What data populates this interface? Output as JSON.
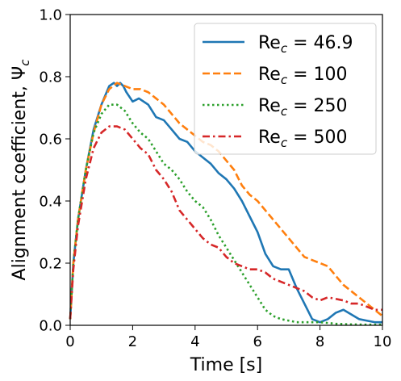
{
  "chart_data": {
    "type": "line",
    "title": "",
    "xlabel": "Time [s]",
    "ylabel": "Alignment coefficient, Ψ",
    "ylabel_subscript": "c",
    "xlim": [
      0,
      10
    ],
    "ylim": [
      0,
      1.0
    ],
    "xticks": [
      "0",
      "2",
      "4",
      "6",
      "8",
      "10"
    ],
    "yticks": [
      "0.0",
      "0.2",
      "0.4",
      "0.6",
      "0.8",
      "1.0"
    ],
    "grid": false,
    "legend_position": "top-right",
    "series": [
      {
        "name_prefix": "Re",
        "name_subscript": "c",
        "name_suffix": " = 46.9",
        "color": "#1f77b4",
        "dash": "solid",
        "x": [
          0,
          0.1,
          0.25,
          0.5,
          0.75,
          1.0,
          1.25,
          1.4,
          1.5,
          1.6,
          1.7,
          1.8,
          2.0,
          2.2,
          2.5,
          2.75,
          3.0,
          3.25,
          3.5,
          3.75,
          4.0,
          4.25,
          4.5,
          4.75,
          5.0,
          5.25,
          5.5,
          5.75,
          6.0,
          6.25,
          6.5,
          6.75,
          7.0,
          7.25,
          7.5,
          7.75,
          8.0,
          8.25,
          8.5,
          8.75,
          9.0,
          9.25,
          9.5,
          9.75,
          10.0
        ],
        "y": [
          0.02,
          0.2,
          0.34,
          0.5,
          0.63,
          0.71,
          0.77,
          0.78,
          0.77,
          0.78,
          0.77,
          0.75,
          0.72,
          0.73,
          0.71,
          0.67,
          0.66,
          0.63,
          0.6,
          0.59,
          0.56,
          0.54,
          0.52,
          0.49,
          0.47,
          0.44,
          0.4,
          0.35,
          0.3,
          0.23,
          0.19,
          0.18,
          0.18,
          0.12,
          0.07,
          0.02,
          0.01,
          0.02,
          0.04,
          0.05,
          0.035,
          0.02,
          0.015,
          0.01,
          0.01
        ]
      },
      {
        "name_prefix": "Re",
        "name_subscript": "c",
        "name_suffix": " = 100",
        "color": "#ff7f0e",
        "dash": "dashed",
        "x": [
          0,
          0.1,
          0.25,
          0.5,
          0.75,
          1.0,
          1.25,
          1.5,
          1.75,
          2.0,
          2.25,
          2.5,
          2.75,
          3.0,
          3.25,
          3.5,
          3.75,
          4.0,
          4.25,
          4.5,
          4.75,
          5.0,
          5.25,
          5.5,
          5.75,
          6.0,
          6.25,
          6.5,
          6.75,
          7.0,
          7.25,
          7.5,
          7.75,
          8.0,
          8.25,
          8.5,
          8.75,
          9.0,
          9.25,
          9.5,
          9.75,
          10.0
        ],
        "y": [
          0.02,
          0.2,
          0.34,
          0.5,
          0.62,
          0.71,
          0.76,
          0.78,
          0.77,
          0.76,
          0.76,
          0.75,
          0.73,
          0.71,
          0.68,
          0.65,
          0.63,
          0.61,
          0.59,
          0.58,
          0.56,
          0.53,
          0.5,
          0.45,
          0.42,
          0.4,
          0.37,
          0.34,
          0.31,
          0.28,
          0.25,
          0.22,
          0.21,
          0.2,
          0.19,
          0.16,
          0.13,
          0.11,
          0.09,
          0.07,
          0.05,
          0.03
        ]
      },
      {
        "name_prefix": "Re",
        "name_subscript": "c",
        "name_suffix": " = 250",
        "color": "#2ca02c",
        "dash": "dotted",
        "x": [
          0,
          0.1,
          0.25,
          0.5,
          0.75,
          1.0,
          1.25,
          1.5,
          1.75,
          2.0,
          2.25,
          2.5,
          2.75,
          3.0,
          3.25,
          3.5,
          3.75,
          4.0,
          4.25,
          4.5,
          4.75,
          5.0,
          5.25,
          5.5,
          5.75,
          6.0,
          6.25,
          6.5,
          6.75,
          7.0,
          7.25,
          7.5,
          7.75,
          8.0,
          8.5,
          9.0,
          9.5,
          10.0
        ],
        "y": [
          0.02,
          0.2,
          0.34,
          0.5,
          0.62,
          0.68,
          0.71,
          0.71,
          0.69,
          0.65,
          0.62,
          0.6,
          0.56,
          0.52,
          0.5,
          0.47,
          0.43,
          0.4,
          0.38,
          0.34,
          0.29,
          0.25,
          0.21,
          0.17,
          0.13,
          0.09,
          0.05,
          0.03,
          0.02,
          0.015,
          0.01,
          0.01,
          0.01,
          0.01,
          0.005,
          0.003,
          0.002,
          0.002
        ]
      },
      {
        "name_prefix": "Re",
        "name_subscript": "c",
        "name_suffix": " = 500",
        "color": "#d62728",
        "dash": "dashdot",
        "x": [
          0,
          0.1,
          0.25,
          0.5,
          0.75,
          1.0,
          1.25,
          1.5,
          1.75,
          2.0,
          2.25,
          2.5,
          2.75,
          3.0,
          3.25,
          3.5,
          3.75,
          4.0,
          4.25,
          4.5,
          4.75,
          5.0,
          5.25,
          5.5,
          5.75,
          6.0,
          6.25,
          6.5,
          6.75,
          7.0,
          7.25,
          7.5,
          7.75,
          8.0,
          8.25,
          8.5,
          8.75,
          9.0,
          9.25,
          9.5,
          9.75,
          10.0
        ],
        "y": [
          0.02,
          0.18,
          0.32,
          0.47,
          0.57,
          0.62,
          0.64,
          0.64,
          0.63,
          0.6,
          0.57,
          0.55,
          0.5,
          0.47,
          0.43,
          0.37,
          0.34,
          0.31,
          0.28,
          0.26,
          0.25,
          0.22,
          0.2,
          0.19,
          0.18,
          0.18,
          0.17,
          0.15,
          0.14,
          0.13,
          0.12,
          0.11,
          0.09,
          0.08,
          0.09,
          0.085,
          0.08,
          0.07,
          0.07,
          0.06,
          0.05,
          0.05
        ]
      }
    ]
  }
}
